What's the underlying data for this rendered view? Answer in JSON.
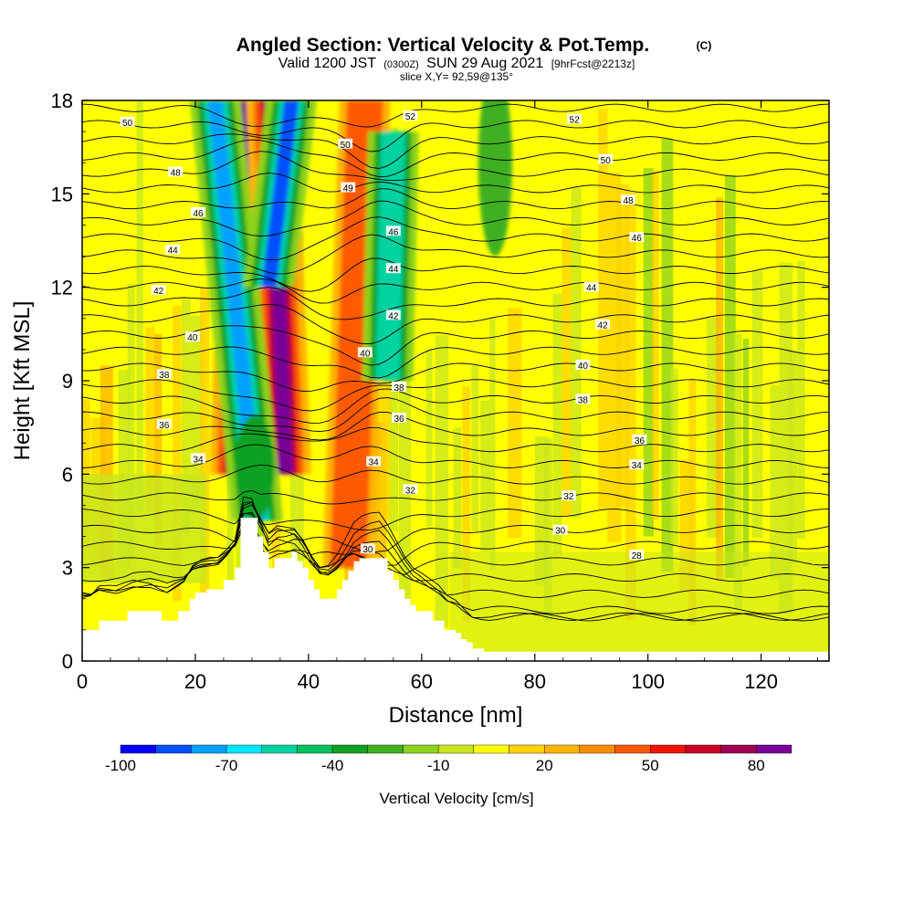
{
  "titles": {
    "main": "Angled Section: Vertical Velocity & Pot.Temp.",
    "copyright": "(C)",
    "valid_prefix": "Valid 1200 JST",
    "valid_zulu": "(0300Z)",
    "valid_date": "SUN 29 Aug 2021",
    "valid_fcst": "[9hrFcst@2213z]",
    "slice": "slice X,Y= 92,59@135°"
  },
  "colorbar": {
    "label": "Vertical Velocity [cm/s]",
    "tick_labels": [
      "-100",
      "-70",
      "-40",
      "-10",
      "20",
      "50",
      "80"
    ],
    "colors": [
      "#0000ff",
      "#0050ff",
      "#00a0ff",
      "#00e6ff",
      "#00d2a0",
      "#00c060",
      "#10a020",
      "#40b020",
      "#8cd21e",
      "#c8e61e",
      "#ffff00",
      "#ffd200",
      "#ffb400",
      "#ff8c00",
      "#ff5a00",
      "#f01400",
      "#c80028",
      "#a00050",
      "#780096"
    ]
  },
  "chart_data": {
    "type": "heatmap",
    "title": "Angled Section: Vertical Velocity & Pot.Temp.",
    "xlabel": "Distance [nm]",
    "ylabel": "Height [Kft MSL]",
    "xlim": [
      0,
      132
    ],
    "ylim": [
      0,
      18
    ],
    "x_ticks": [
      0,
      20,
      40,
      60,
      80,
      100,
      120
    ],
    "y_ticks": [
      0,
      3,
      6,
      9,
      12,
      15,
      18
    ],
    "fill_variable": "Vertical Velocity [cm/s]",
    "fill_range": [
      -100,
      90
    ],
    "fill_interval": 10,
    "contour_variable": "Potential Temperature",
    "contour_interval": 1,
    "terrain": [
      [
        0,
        1
      ],
      [
        1,
        1
      ],
      [
        2,
        1
      ],
      [
        3,
        1.3
      ],
      [
        5,
        1.3
      ],
      [
        6,
        1.3
      ],
      [
        7,
        1.3
      ],
      [
        8,
        1.6
      ],
      [
        11,
        1.6
      ],
      [
        12,
        1.6
      ],
      [
        13,
        1.6
      ],
      [
        14,
        1.3
      ],
      [
        15,
        1.3
      ],
      [
        16,
        1.3
      ],
      [
        17,
        1.6
      ],
      [
        18,
        1.6
      ],
      [
        19,
        2
      ],
      [
        20,
        2.2
      ],
      [
        22,
        2.3
      ],
      [
        23,
        2.3
      ],
      [
        24,
        2.3
      ],
      [
        25,
        2.6
      ],
      [
        26,
        2.6
      ],
      [
        27,
        3
      ],
      [
        28,
        4.6
      ],
      [
        29,
        4.6
      ],
      [
        30,
        4.6
      ],
      [
        31,
        4.0
      ],
      [
        32,
        3.5
      ],
      [
        33,
        3.0
      ],
      [
        34,
        3.3
      ],
      [
        35,
        3.3
      ],
      [
        36,
        3.3
      ],
      [
        37,
        3.5
      ],
      [
        38,
        3.2
      ],
      [
        39,
        3.0
      ],
      [
        40,
        2.6
      ],
      [
        41,
        2.3
      ],
      [
        42,
        2.0
      ],
      [
        43,
        2.0
      ],
      [
        44,
        2.0
      ],
      [
        45,
        2.3
      ],
      [
        46,
        2.6
      ],
      [
        47,
        2.9
      ],
      [
        48,
        3.2
      ],
      [
        49,
        3.3
      ],
      [
        50,
        3.3
      ],
      [
        51,
        3.3
      ],
      [
        52,
        3.3
      ],
      [
        53,
        3.3
      ],
      [
        54,
        2.9
      ],
      [
        55,
        2.6
      ],
      [
        56,
        2.3
      ],
      [
        57,
        2.0
      ],
      [
        58,
        1.8
      ],
      [
        59,
        1.6
      ],
      [
        60,
        1.6
      ],
      [
        61,
        1.6
      ],
      [
        62,
        1.3
      ],
      [
        63,
        1.3
      ],
      [
        64,
        1.0
      ],
      [
        65,
        1.0
      ],
      [
        66,
        0.9
      ],
      [
        67,
        0.7
      ],
      [
        68,
        0.6
      ],
      [
        69,
        0.4
      ],
      [
        70,
        0.4
      ],
      [
        71,
        0.3
      ],
      [
        80,
        0.3
      ],
      [
        85,
        0.3
      ],
      [
        100,
        0.3
      ],
      [
        110,
        0.3
      ],
      [
        120,
        0.3
      ],
      [
        128,
        0.3
      ],
      [
        132,
        0.3
      ]
    ],
    "updraft_axes": [
      {
        "x_bottom": 27,
        "x_top": 29.5,
        "z_bottom": 6,
        "z_top": 18,
        "w": 80
      },
      {
        "x_bottom": 36,
        "x_top": 33.5,
        "z_bottom": 6,
        "z_top": 18,
        "w": 90
      },
      {
        "x_bottom": 47,
        "x_top": 50,
        "z_bottom": 3,
        "z_top": 18,
        "w": 40
      }
    ],
    "downdraft_axes": [
      {
        "x_bottom": 31,
        "x_top": 23.5,
        "z_bottom": 4.5,
        "z_top": 18,
        "w": -80
      },
      {
        "x_bottom": 33,
        "x_top": 37,
        "z_bottom": 12,
        "z_top": 18,
        "w": -90
      },
      {
        "x_bottom": 54,
        "x_top": 55,
        "z_bottom": 9,
        "z_top": 17,
        "w": -60
      }
    ],
    "contour_labels": [
      {
        "text": "50",
        "x": 8,
        "z": 17.3
      },
      {
        "text": "48",
        "x": 16.5,
        "z": 15.7
      },
      {
        "text": "46",
        "x": 20.5,
        "z": 14.4
      },
      {
        "text": "44",
        "x": 16,
        "z": 13.2
      },
      {
        "text": "42",
        "x": 13.5,
        "z": 11.9
      },
      {
        "text": "40",
        "x": 19.5,
        "z": 10.4
      },
      {
        "text": "38",
        "x": 14.5,
        "z": 9.2
      },
      {
        "text": "36",
        "x": 14.5,
        "z": 7.6
      },
      {
        "text": "34",
        "x": 20.5,
        "z": 6.5
      },
      {
        "text": "50",
        "x": 46.5,
        "z": 16.6
      },
      {
        "text": "49",
        "x": 47,
        "z": 15.2
      },
      {
        "text": "52",
        "x": 58,
        "z": 17.5
      },
      {
        "text": "46",
        "x": 55,
        "z": 13.8
      },
      {
        "text": "44",
        "x": 55,
        "z": 12.6
      },
      {
        "text": "42",
        "x": 55,
        "z": 11.1
      },
      {
        "text": "40",
        "x": 50,
        "z": 9.9
      },
      {
        "text": "38",
        "x": 56,
        "z": 8.8
      },
      {
        "text": "36",
        "x": 56,
        "z": 7.8
      },
      {
        "text": "34",
        "x": 51.5,
        "z": 6.4
      },
      {
        "text": "32",
        "x": 58,
        "z": 5.5
      },
      {
        "text": "30",
        "x": 50.5,
        "z": 3.6
      },
      {
        "text": "52",
        "x": 87,
        "z": 17.4
      },
      {
        "text": "50",
        "x": 92.5,
        "z": 16.1
      },
      {
        "text": "48",
        "x": 96.5,
        "z": 14.8
      },
      {
        "text": "46",
        "x": 98,
        "z": 13.6
      },
      {
        "text": "44",
        "x": 90,
        "z": 12.0
      },
      {
        "text": "42",
        "x": 92,
        "z": 10.8
      },
      {
        "text": "40",
        "x": 88.5,
        "z": 9.5
      },
      {
        "text": "38",
        "x": 88.5,
        "z": 8.4
      },
      {
        "text": "36",
        "x": 98.5,
        "z": 7.1
      },
      {
        "text": "34",
        "x": 98,
        "z": 6.3
      },
      {
        "text": "32",
        "x": 86,
        "z": 5.3
      },
      {
        "text": "30",
        "x": 84.5,
        "z": 4.2
      },
      {
        "text": "28",
        "x": 98,
        "z": 3.4
      }
    ]
  }
}
